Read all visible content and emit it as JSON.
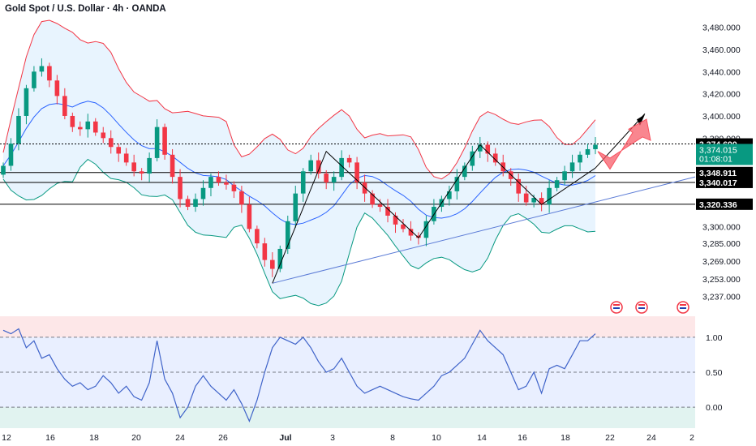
{
  "header": {
    "title": "Gold Spot / U.S. Dollar · 4h · OANDA"
  },
  "colors": {
    "up": "#089981",
    "down": "#f23645",
    "upper_band": "#f23645",
    "lower_band": "#089981",
    "basis": "#2962ff",
    "band_fill": "#2196f3",
    "trendline": "#5b7bd6",
    "pattern": "#000000",
    "arrow": "#f7525f",
    "osc_line": "#3f63c9",
    "label_bg": "#000000",
    "price_bg": "#089981"
  },
  "chart_data": [
    {
      "type": "candlestick",
      "title": "Gold Spot / U.S. Dollar · 4h · OANDA",
      "ylim": [
        3228,
        3490
      ],
      "y_ticks": [
        "3,480.000",
        "3,460.000",
        "3,440.000",
        "3,420.000",
        "3,400.000",
        "3,380.000",
        "3,360.000",
        "3,340.000",
        "3,320.000",
        "3,300.000",
        "3,285.000",
        "3,269.000",
        "3,253.000",
        "3,237.000"
      ],
      "x_ticks": [
        "12",
        "16",
        "18",
        "20",
        "24",
        "26",
        "Jul",
        "3",
        "8",
        "10",
        "14",
        "16",
        "18",
        "22",
        "24",
        "2"
      ],
      "closes": [
        3355,
        3375,
        3400,
        3425,
        3440,
        3445,
        3432,
        3418,
        3400,
        3390,
        3388,
        3395,
        3385,
        3380,
        3372,
        3366,
        3358,
        3350,
        3348,
        3362,
        3390,
        3365,
        3345,
        3325,
        3318,
        3325,
        3335,
        3345,
        3340,
        3338,
        3332,
        3320,
        3298,
        3285,
        3270,
        3262,
        3280,
        3305,
        3330,
        3350,
        3360,
        3348,
        3340,
        3345,
        3362,
        3358,
        3340,
        3330,
        3320,
        3318,
        3310,
        3302,
        3298,
        3292,
        3290,
        3305,
        3318,
        3325,
        3332,
        3345,
        3355,
        3368,
        3374,
        3366,
        3358,
        3350,
        3343,
        3330,
        3322,
        3326,
        3320,
        3335,
        3342,
        3350,
        3358,
        3365,
        3370,
        3374
      ],
      "price_labels": [
        {
          "price": "3,374.690",
          "value": 3374.69
        },
        {
          "price": "3,348.911",
          "value": 3348.911
        },
        {
          "price": "3,340.017",
          "value": 3340.017
        },
        {
          "price": "3,320.336",
          "value": 3320.336
        }
      ],
      "current_price": {
        "price": "3,374.015",
        "countdown": "01:08:01",
        "value": 3374.015
      },
      "indicators": [
        "Bollinger Bands (upper/basis/lower)",
        "Ascending trendline",
        "ABCD zigzag pattern",
        "Projected up arrow"
      ]
    },
    {
      "type": "line",
      "ylim": [
        -0.3,
        1.3
      ],
      "y_ticks": [
        "1.00",
        "0.50",
        "0.00"
      ],
      "values": [
        1.1,
        1.05,
        1.12,
        0.85,
        0.95,
        0.7,
        0.75,
        0.55,
        0.4,
        0.3,
        0.35,
        0.25,
        0.3,
        0.45,
        0.35,
        0.2,
        0.3,
        0.15,
        0.1,
        0.35,
        0.95,
        0.4,
        0.2,
        -0.15,
        0.0,
        0.3,
        0.45,
        0.3,
        0.2,
        0.1,
        0.25,
        0.05,
        -0.2,
        0.1,
        0.5,
        0.85,
        1.0,
        0.95,
        0.9,
        1.0,
        0.85,
        0.65,
        0.5,
        0.55,
        0.7,
        0.5,
        0.3,
        0.2,
        0.25,
        0.3,
        0.25,
        0.2,
        0.15,
        0.12,
        0.1,
        0.2,
        0.3,
        0.45,
        0.5,
        0.6,
        0.7,
        0.9,
        1.1,
        0.95,
        0.85,
        0.75,
        0.5,
        0.25,
        0.3,
        0.5,
        0.2,
        0.55,
        0.6,
        0.55,
        0.75,
        0.95,
        0.95,
        1.05
      ]
    }
  ]
}
